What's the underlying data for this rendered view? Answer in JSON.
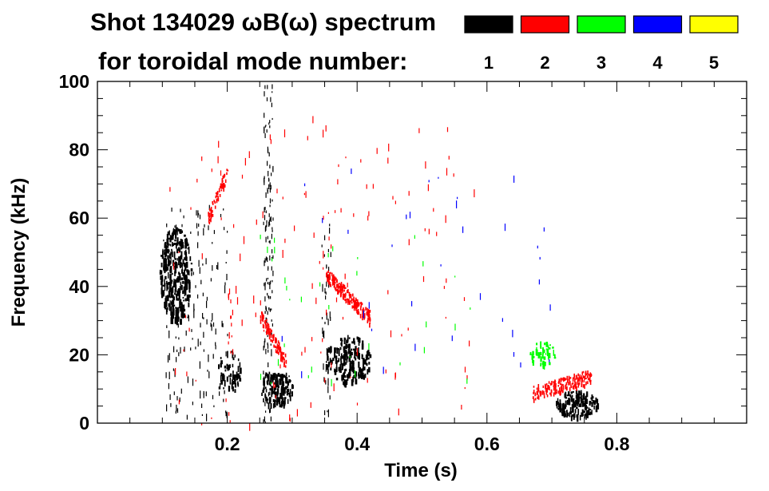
{
  "chart_data": {
    "type": "heatmap",
    "title": "Shot 134029 ωB(ω) spectrum",
    "subtitle": "for toroidal mode number:",
    "xlabel": "Time (s)",
    "ylabel": "Frequency (kHz)",
    "xlim": [
      0.0,
      1.0
    ],
    "ylim": [
      0,
      100
    ],
    "x_ticks": [
      {
        "value": 0.2,
        "label": "0.2"
      },
      {
        "value": 0.4,
        "label": "0.4"
      },
      {
        "value": 0.6,
        "label": "0.6"
      },
      {
        "value": 0.8,
        "label": "0.8"
      }
    ],
    "y_ticks": [
      {
        "value": 0,
        "label": "0"
      },
      {
        "value": 20,
        "label": "20"
      },
      {
        "value": 40,
        "label": "40"
      },
      {
        "value": 60,
        "label": "60"
      },
      {
        "value": 80,
        "label": "80"
      },
      {
        "value": 100,
        "label": "100"
      }
    ],
    "legend": [
      {
        "mode": "1",
        "color": "#000000"
      },
      {
        "mode": "2",
        "color": "#ff0000"
      },
      {
        "mode": "3",
        "color": "#00ff00"
      },
      {
        "mode": "4",
        "color": "#0000ff"
      },
      {
        "mode": "5",
        "color": "#ffff00"
      }
    ],
    "features": [
      {
        "mode": "1",
        "shape": "blob",
        "t0": 0.095,
        "t1": 0.145,
        "f0": 30,
        "f1": 58,
        "density": 0.75
      },
      {
        "mode": "1",
        "shape": "sparse",
        "t0": 0.1,
        "t1": 0.2,
        "f0": 2,
        "f1": 64,
        "density": 0.12
      },
      {
        "mode": "1",
        "shape": "blob",
        "t0": 0.185,
        "t1": 0.22,
        "f0": 9,
        "f1": 22,
        "density": 0.4
      },
      {
        "mode": "1",
        "shape": "line",
        "t0": 0.255,
        "t1": 0.27,
        "f0": 0,
        "f1": 100,
        "density": 0.35
      },
      {
        "mode": "1",
        "shape": "blob",
        "t0": 0.25,
        "t1": 0.3,
        "f0": 5,
        "f1": 16,
        "density": 0.75
      },
      {
        "mode": "1",
        "shape": "sparse",
        "t0": 0.345,
        "t1": 0.36,
        "f0": 3,
        "f1": 60,
        "density": 0.22
      },
      {
        "mode": "1",
        "shape": "blob",
        "t0": 0.35,
        "t1": 0.42,
        "f0": 12,
        "f1": 26,
        "density": 0.6
      },
      {
        "mode": "1",
        "shape": "blob",
        "t0": 0.705,
        "t1": 0.77,
        "f0": 2,
        "f1": 10,
        "density": 0.85
      },
      {
        "mode": "2",
        "shape": "chirp",
        "t0": 0.17,
        "t1": 0.2,
        "f0": 60,
        "f1": 74,
        "density": 0.55
      },
      {
        "mode": "2",
        "shape": "chirp",
        "t0": 0.25,
        "t1": 0.29,
        "f0": 32,
        "f1": 18,
        "density": 0.6
      },
      {
        "mode": "2",
        "shape": "chirp",
        "t0": 0.35,
        "t1": 0.42,
        "f0": 44,
        "f1": 31,
        "density": 0.7
      },
      {
        "mode": "2",
        "shape": "sparse",
        "t0": 0.2,
        "t1": 0.21,
        "f0": 20,
        "f1": 40,
        "density": 0.3
      },
      {
        "mode": "2",
        "shape": "chirp",
        "t0": 0.67,
        "t1": 0.76,
        "f0": 9,
        "f1": 14,
        "density": 0.5
      },
      {
        "mode": "2",
        "shape": "sparse",
        "t0": 0.1,
        "t1": 0.58,
        "f0": 0,
        "f1": 92,
        "density": 0.015
      },
      {
        "mode": "3",
        "shape": "blob",
        "t0": 0.665,
        "t1": 0.705,
        "f0": 17,
        "f1": 24,
        "density": 0.55
      },
      {
        "mode": "3",
        "shape": "sparse",
        "t0": 0.25,
        "t1": 0.58,
        "f0": 10,
        "f1": 60,
        "density": 0.01
      },
      {
        "mode": "4",
        "shape": "sparse",
        "t0": 0.25,
        "t1": 0.72,
        "f0": 15,
        "f1": 75,
        "density": 0.006
      }
    ]
  }
}
